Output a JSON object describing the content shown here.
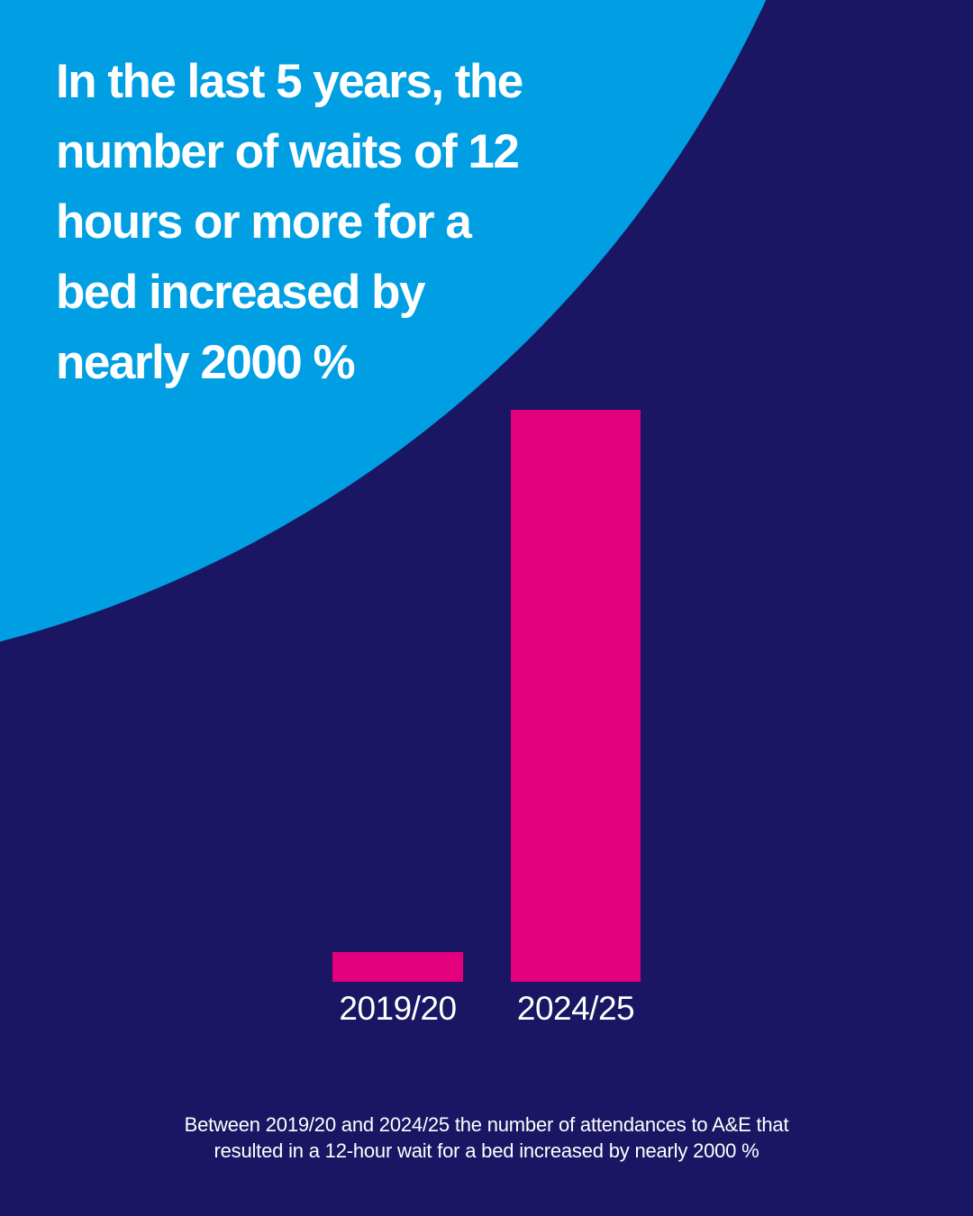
{
  "headline": {
    "lines": [
      "In the last 5 years, the",
      "number of waits of 12",
      "hours or more for a",
      "bed increased by",
      "nearly 2000 %"
    ],
    "text_color": "#FFFFFF"
  },
  "chart_data": {
    "type": "bar",
    "categories": [
      "2019/20",
      "2024/25"
    ],
    "values": [
      33,
      635
    ],
    "values_note": "no numeric axis shown in image; values are relative bar heights in px, ratio approx 1:19 matching the stated increase of nearly 2000 %",
    "title": "In the last 5 years, the number of waits of 12 hours or more for a bed increased by nearly 2000 %",
    "xlabel": "",
    "ylabel": "",
    "grid": "off",
    "legend": "none",
    "axes_hidden": true,
    "bar_color": "#E4007D",
    "label_color": "#FFFFFF",
    "background_color": "#1A1663",
    "accent_color": "#009FE3"
  },
  "caption": {
    "lines": [
      "Between 2019/20 and 2024/25 the number of attendances to A&E that",
      "resulted in a 12-hour wait for a bed increased by nearly 2000 %"
    ],
    "text_color": "#FFFFFF"
  }
}
